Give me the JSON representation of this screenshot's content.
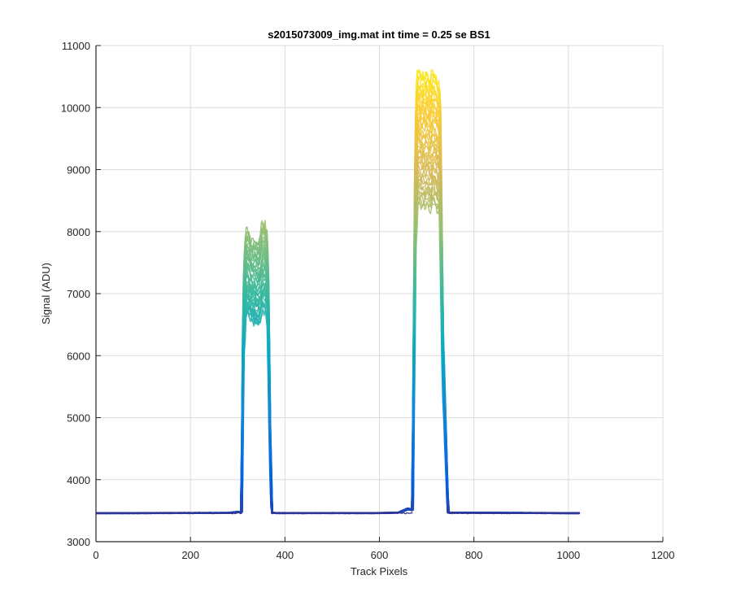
{
  "chart_data": {
    "type": "line",
    "title": "s2015073009_img.mat int time = 0.25 se   BS1",
    "xlabel": "Track Pixels",
    "ylabel": "Signal (ADU)",
    "xlim": [
      0,
      1200
    ],
    "ylim": [
      3000,
      11000
    ],
    "xticks": [
      0,
      200,
      400,
      600,
      800,
      1000,
      1200
    ],
    "yticks": [
      3000,
      4000,
      5000,
      6000,
      7000,
      8000,
      9000,
      10000,
      11000
    ],
    "xtick_labels": [
      "0",
      "200",
      "400",
      "600",
      "800",
      "1000",
      "1200"
    ],
    "ytick_labels": [
      "3000",
      "4000",
      "5000",
      "6000",
      "7000",
      "8000",
      "9000",
      "10000",
      "11000"
    ],
    "grid": true,
    "colormap": "parula",
    "colormap_stops": [
      "#352a87",
      "#0363e1",
      "#1485d4",
      "#06a7c6",
      "#38b99e",
      "#92bf73",
      "#d9ba56",
      "#fcce2e",
      "#f9fb0e"
    ],
    "series_count": 40,
    "baseline": 3460,
    "profile": {
      "x": [
        0,
        280,
        300,
        308,
        312,
        316,
        320,
        324,
        328,
        332,
        336,
        340,
        344,
        348,
        352,
        356,
        360,
        364,
        368,
        372,
        380,
        600,
        640,
        660,
        670,
        676,
        680,
        684,
        688,
        692,
        696,
        700,
        704,
        708,
        712,
        716,
        720,
        724,
        728,
        734,
        745,
        1024
      ],
      "y": [
        3460,
        3465,
        3485,
        3470,
        7000,
        7900,
        8050,
        7980,
        7850,
        7820,
        7860,
        7800,
        7830,
        7900,
        8180,
        8100,
        8150,
        7600,
        5000,
        3470,
        3462,
        3462,
        3470,
        3540,
        3520,
        9500,
        10550,
        10620,
        10500,
        10580,
        10460,
        10600,
        10520,
        10400,
        10610,
        10560,
        10500,
        10350,
        10400,
        6500,
        3470,
        3460
      ]
    }
  }
}
